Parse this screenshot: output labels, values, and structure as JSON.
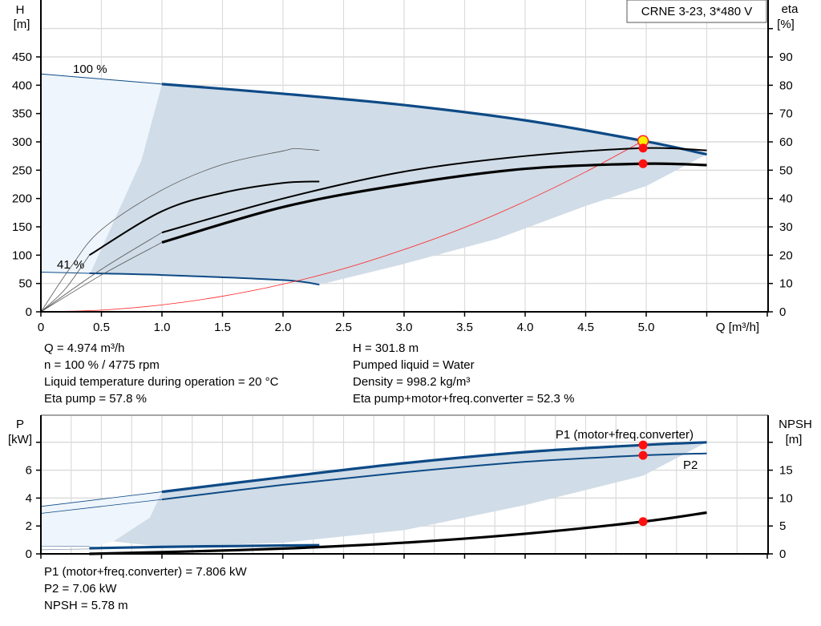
{
  "chart_data": [
    {
      "type": "line",
      "title": "CRNE 3-23, 3*480 V",
      "xlabel": "Q [m³/h]",
      "ylabel_left": [
        "H",
        "[m]"
      ],
      "ylabel_right": [
        "eta",
        "[%]"
      ],
      "xlim": [
        0,
        6
      ],
      "ylim_left": [
        0,
        500
      ],
      "ylim_right": [
        0,
        100
      ],
      "x_ticks": [
        "0",
        "0.5",
        "1.0",
        "1.5",
        "2.0",
        "2.5",
        "3.0",
        "3.5",
        "4.0",
        "4.5",
        "5.0"
      ],
      "y_ticks_left": [
        "0",
        "50",
        "100",
        "150",
        "200",
        "250",
        "300",
        "350",
        "400",
        "450"
      ],
      "y_ticks_right": [
        "0",
        "10",
        "20",
        "30",
        "40",
        "50",
        "60",
        "70",
        "80",
        "90"
      ],
      "grid": true,
      "annotations": [
        "100 %",
        "41 %"
      ],
      "regions": [
        {
          "color": "#eef5fc",
          "axis": "left",
          "points": [
            [
              0,
              420
            ],
            [
              1,
              402
            ],
            [
              0.83,
              267
            ],
            [
              0.41,
              69
            ],
            [
              0,
              70
            ]
          ]
        },
        {
          "color": "#d0dce7",
          "axis": "left",
          "points": [
            [
              1,
              402
            ],
            [
              2,
              385
            ],
            [
              3,
              365
            ],
            [
              4,
              338
            ],
            [
              4.974,
              301.8
            ],
            [
              5.5,
              278
            ],
            [
              5,
              222
            ],
            [
              4.5,
              187
            ],
            [
              3.77,
              129
            ],
            [
              2.97,
              83
            ],
            [
              2.3,
              48
            ],
            [
              2,
              56
            ],
            [
              1,
              65
            ],
            [
              0.41,
              69
            ],
            [
              0.83,
              267
            ]
          ]
        }
      ],
      "series": [
        {
          "axis": "left",
          "color": "#0d4a86",
          "weight": "thin",
          "points": [
            [
              0,
              420
            ],
            [
              0.5,
              411
            ],
            [
              1,
              402
            ]
          ]
        },
        {
          "axis": "left",
          "color": "#0d4a86",
          "weight": "thick",
          "points": [
            [
              1,
              402
            ],
            [
              2,
              385
            ],
            [
              3,
              365
            ],
            [
              4,
              338
            ],
            [
              4.974,
              301.8
            ],
            [
              5.5,
              278
            ]
          ]
        },
        {
          "axis": "left",
          "color": "#0d4a86",
          "weight": "thin",
          "points": [
            [
              0,
              70
            ],
            [
              0.4,
              68
            ]
          ]
        },
        {
          "axis": "left",
          "color": "#0d4a86",
          "weight": "medium",
          "points": [
            [
              0.4,
              68
            ],
            [
              1,
              65
            ],
            [
              2,
              56
            ],
            [
              2.3,
              48
            ]
          ]
        },
        {
          "axis": "left",
          "color": "#ff2020",
          "weight": "hair",
          "points": [
            [
              0,
              0
            ],
            [
              0.5,
              3
            ],
            [
              1,
              12.2
            ],
            [
              1.5,
              27.5
            ],
            [
              2,
              48.8
            ],
            [
              2.5,
              76
            ],
            [
              3,
              110
            ],
            [
              3.5,
              149
            ],
            [
              4,
              195
            ],
            [
              4.5,
              247
            ],
            [
              4.974,
              301.8
            ]
          ]
        },
        {
          "axis": "right",
          "color": "#555555",
          "weight": "hair",
          "points": [
            [
              0,
              0
            ],
            [
              0.25,
              16
            ],
            [
              0.5,
              29
            ],
            [
              1,
              43
            ],
            [
              1.5,
              52
            ],
            [
              2,
              56.8
            ],
            [
              2.1,
              57.6
            ],
            [
              2.3,
              57
            ]
          ]
        },
        {
          "axis": "right",
          "color": "#555555",
          "weight": "hair",
          "points": [
            [
              0,
              0
            ],
            [
              0.2,
              8
            ],
            [
              0.4,
              20
            ]
          ]
        },
        {
          "axis": "right",
          "color": "#000000",
          "weight": "medium",
          "points": [
            [
              0.4,
              20
            ],
            [
              1,
              35.5
            ],
            [
              1.5,
              42
            ],
            [
              2,
              45.5
            ],
            [
              2.3,
              46
            ]
          ]
        },
        {
          "axis": "right",
          "color": "#555555",
          "weight": "hair",
          "points": [
            [
              0,
              0
            ],
            [
              0.5,
              15
            ],
            [
              1,
              28
            ]
          ]
        },
        {
          "axis": "right",
          "color": "#000000",
          "weight": "medium",
          "points": [
            [
              1,
              28
            ],
            [
              2,
              40
            ],
            [
              3,
              49.5
            ],
            [
              4,
              55
            ],
            [
              4.974,
              57.8
            ],
            [
              5.5,
              57
            ]
          ]
        },
        {
          "axis": "right",
          "color": "#555555",
          "weight": "hair",
          "points": [
            [
              0,
              0
            ],
            [
              0.5,
              13
            ],
            [
              1,
              24.5
            ]
          ]
        },
        {
          "axis": "right",
          "color": "#000000",
          "weight": "thick",
          "points": [
            [
              1,
              24.5
            ],
            [
              2,
              37
            ],
            [
              3,
              45
            ],
            [
              4,
              50.5
            ],
            [
              4.974,
              52.3
            ],
            [
              5.5,
              51.8
            ]
          ]
        }
      ],
      "markers": [
        {
          "axis": "left",
          "x": 4.974,
          "y": 301.8,
          "color": "#ffee00",
          "stroke": "#ff2020"
        },
        {
          "axis": "right",
          "x": 4.974,
          "y": 57.8,
          "color": "#ff1010"
        },
        {
          "axis": "right",
          "x": 4.974,
          "y": 52.3,
          "color": "#ff1010"
        }
      ]
    },
    {
      "type": "line",
      "ylabel_left": [
        "P",
        "[kW]"
      ],
      "ylabel_right": [
        "NPSH",
        "[m]"
      ],
      "xlim": [
        0,
        6
      ],
      "ylim_left": [
        0,
        8
      ],
      "ylim_right": [
        0,
        20
      ],
      "y_ticks_left": [
        "0",
        "2",
        "4",
        "6"
      ],
      "y_ticks_right": [
        "0",
        "5",
        "10",
        "15"
      ],
      "grid": true,
      "regions": [
        {
          "color": "#eef5fc",
          "axis": "left",
          "points": [
            [
              0,
              3.4
            ],
            [
              1,
              4.45
            ],
            [
              0.9,
              2.6
            ],
            [
              0.6,
              0.9
            ],
            [
              0.4,
              0.45
            ],
            [
              0,
              0.5
            ]
          ]
        },
        {
          "color": "#d0dce7",
          "axis": "left",
          "points": [
            [
              1,
              4.45
            ],
            [
              2,
              5.5
            ],
            [
              3,
              6.5
            ],
            [
              4,
              7.3
            ],
            [
              4.974,
              7.806
            ],
            [
              5.5,
              8.0
            ],
            [
              4.974,
              5.6
            ],
            [
              4,
              3.5
            ],
            [
              3,
              1.7
            ],
            [
              2,
              0.8
            ],
            [
              1,
              0.5
            ],
            [
              0.6,
              0.9
            ],
            [
              0.9,
              2.6
            ]
          ]
        }
      ],
      "series": [
        {
          "name": "P1 (motor+freq.converter)",
          "axis": "left",
          "color": "#0d4a86",
          "weight": "hair",
          "points": [
            [
              0,
              3.4
            ],
            [
              1,
              4.45
            ]
          ]
        },
        {
          "axis": "left",
          "color": "#0d4a86",
          "weight": "thick",
          "points": [
            [
              1,
              4.45
            ],
            [
              2,
              5.5
            ],
            [
              3,
              6.5
            ],
            [
              4,
              7.3
            ],
            [
              4.974,
              7.806
            ],
            [
              5.5,
              8.0
            ]
          ]
        },
        {
          "name": "P2",
          "axis": "left",
          "color": "#0d4a86",
          "weight": "hair",
          "points": [
            [
              0,
              2.9
            ],
            [
              1,
              3.9
            ]
          ]
        },
        {
          "axis": "left",
          "color": "#0d4a86",
          "weight": "medium",
          "points": [
            [
              1,
              3.9
            ],
            [
              2,
              4.95
            ],
            [
              3,
              5.85
            ],
            [
              4,
              6.6
            ],
            [
              4.974,
              7.06
            ],
            [
              5.5,
              7.2
            ]
          ]
        },
        {
          "axis": "left",
          "color": "#0d4a86",
          "weight": "thick",
          "points": [
            [
              0.4,
              0.4
            ],
            [
              1,
              0.5
            ],
            [
              2,
              0.6
            ],
            [
              2.3,
              0.62
            ]
          ]
        },
        {
          "axis": "left",
          "color": "#8a9bb0",
          "weight": "hair",
          "points": [
            [
              0,
              0.55
            ],
            [
              0.4,
              0.55
            ]
          ]
        },
        {
          "axis": "left",
          "color": "#8a9bb0",
          "weight": "hair",
          "points": [
            [
              0,
              0.3
            ],
            [
              0.4,
              0.35
            ]
          ]
        },
        {
          "axis": "right",
          "color": "#000000",
          "weight": "thick",
          "points": [
            [
              0.4,
              0
            ],
            [
              1,
              0.3
            ],
            [
              2,
              0.95
            ],
            [
              3,
              2.0
            ],
            [
              4,
              3.6
            ],
            [
              4.974,
              5.78
            ],
            [
              5.5,
              7.4
            ]
          ]
        }
      ],
      "markers": [
        {
          "axis": "left",
          "x": 4.974,
          "y": 7.806,
          "color": "#ff1010"
        },
        {
          "axis": "left",
          "x": 4.974,
          "y": 7.06,
          "color": "#ff1010"
        },
        {
          "axis": "right",
          "x": 4.974,
          "y": 5.78,
          "color": "#ff1010"
        }
      ]
    }
  ],
  "results_top": {
    "left": [
      "Q = 4.974 m³/h",
      "n = 100 % / 4775 rpm",
      "Liquid temperature during operation = 20 °C",
      "Eta pump = 57.8 %"
    ],
    "right": [
      "H = 301.8 m",
      "Pumped liquid = Water",
      "Density = 998.2 kg/m³",
      "Eta pump+motor+freq.converter = 52.3 %"
    ]
  },
  "results_bottom": [
    "P1 (motor+freq.converter) = 7.806 kW",
    "P2 = 7.06 kW",
    "NPSH = 5.78 m"
  ]
}
